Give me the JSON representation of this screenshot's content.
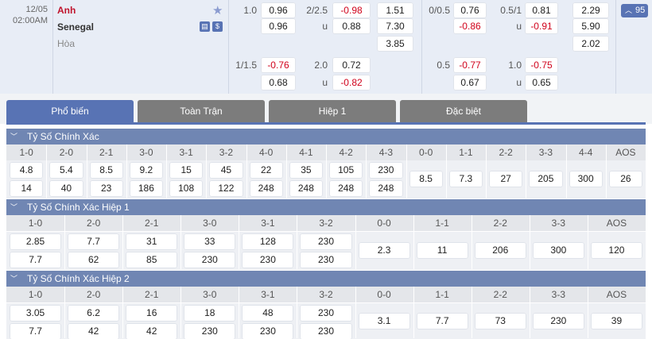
{
  "match": {
    "date": "12/05",
    "time": "02:00AM",
    "home": "Anh",
    "away": "Senegal",
    "draw": "Hòa",
    "more_count": "95"
  },
  "odds_rows": [
    [
      "1.0",
      "0.96",
      "2/2.5",
      "-0.98",
      "1.51",
      "0/0.5",
      "0.76",
      "0.5/1",
      "0.81",
      "2.29"
    ],
    [
      null,
      "0.96",
      "u",
      "0.88",
      "7.30",
      null,
      "-0.86",
      "u",
      "-0.91",
      "5.90"
    ],
    [
      null,
      null,
      null,
      null,
      "3.85",
      null,
      null,
      null,
      null,
      "2.02"
    ],
    [
      "1/1.5",
      "-0.76",
      "2.0",
      "0.72",
      null,
      "0.5",
      "-0.77",
      "1.0",
      "-0.75",
      null
    ],
    [
      null,
      "0.68",
      "u",
      "-0.82",
      null,
      null,
      "0.67",
      "u",
      "0.65",
      null
    ]
  ],
  "tabs": [
    "Phổ biến",
    "Toàn Trận",
    "Hiệp 1",
    "Đặc biệt"
  ],
  "sections": [
    {
      "title": "Tỷ Số Chính Xác",
      "labels": [
        "1-0",
        "2-0",
        "2-1",
        "3-0",
        "3-1",
        "3-2",
        "4-0",
        "4-1",
        "4-2",
        "4-3",
        "0-0",
        "1-1",
        "2-2",
        "3-3",
        "4-4",
        "AOS"
      ],
      "cells": [
        [
          "4.8",
          "14"
        ],
        [
          "5.4",
          "40"
        ],
        [
          "8.5",
          "23"
        ],
        [
          "9.2",
          "186"
        ],
        [
          "15",
          "108"
        ],
        [
          "45",
          "122"
        ],
        [
          "22",
          "248"
        ],
        [
          "35",
          "248"
        ],
        [
          "105",
          "248"
        ],
        [
          "230",
          "248"
        ],
        [
          "8.5"
        ],
        [
          "7.3"
        ],
        [
          "27"
        ],
        [
          "205"
        ],
        [
          "300"
        ],
        [
          "26"
        ]
      ]
    },
    {
      "title": "Tỷ Số Chính Xác Hiệp 1",
      "labels": [
        "1-0",
        "2-0",
        "2-1",
        "3-0",
        "3-1",
        "3-2",
        "0-0",
        "1-1",
        "2-2",
        "3-3",
        "AOS"
      ],
      "cells": [
        [
          "2.85",
          "7.7"
        ],
        [
          "7.7",
          "62"
        ],
        [
          "31",
          "85"
        ],
        [
          "33",
          "230"
        ],
        [
          "128",
          "230"
        ],
        [
          "230",
          "230"
        ],
        [
          "2.3"
        ],
        [
          "11"
        ],
        [
          "206"
        ],
        [
          "300"
        ],
        [
          "120"
        ]
      ]
    },
    {
      "title": "Tỷ Số Chính Xác Hiệp 2",
      "labels": [
        "1-0",
        "2-0",
        "2-1",
        "3-0",
        "3-1",
        "3-2",
        "0-0",
        "1-1",
        "2-2",
        "3-3",
        "AOS"
      ],
      "cells": [
        [
          "3.05",
          "7.7"
        ],
        [
          "6.2",
          "42"
        ],
        [
          "16",
          "42"
        ],
        [
          "18",
          "230"
        ],
        [
          "48",
          "230"
        ],
        [
          "230",
          "230"
        ],
        [
          "3.1"
        ],
        [
          "7.7"
        ],
        [
          "73"
        ],
        [
          "230"
        ],
        [
          "39"
        ]
      ]
    }
  ]
}
